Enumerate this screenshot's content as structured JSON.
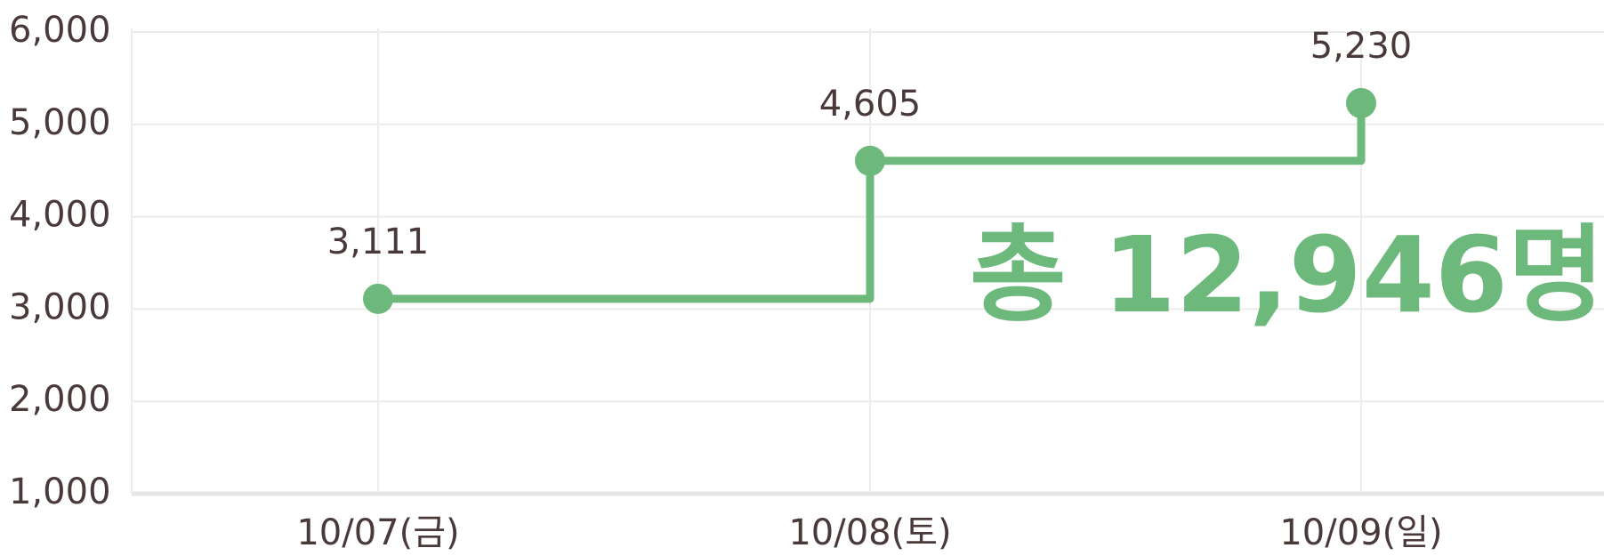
{
  "chart_data": {
    "type": "line",
    "step": true,
    "categories": [
      "10/07(금)",
      "10/08(토)",
      "10/09(일)"
    ],
    "values": [
      3111,
      4605,
      5230
    ],
    "value_labels": [
      "3,111",
      "4,605",
      "5,230"
    ],
    "color": "#6db87b",
    "ylim": [
      1000,
      6000
    ],
    "yticks": [
      {
        "value": 1000,
        "label": "1,000"
      },
      {
        "value": 2000,
        "label": "2,000"
      },
      {
        "value": 3000,
        "label": "3,000"
      },
      {
        "value": 4000,
        "label": "4,000"
      },
      {
        "value": 5000,
        "label": "5,000"
      },
      {
        "value": 6000,
        "label": "6,000"
      }
    ],
    "grid": true,
    "annotation": "총 12,946명"
  }
}
